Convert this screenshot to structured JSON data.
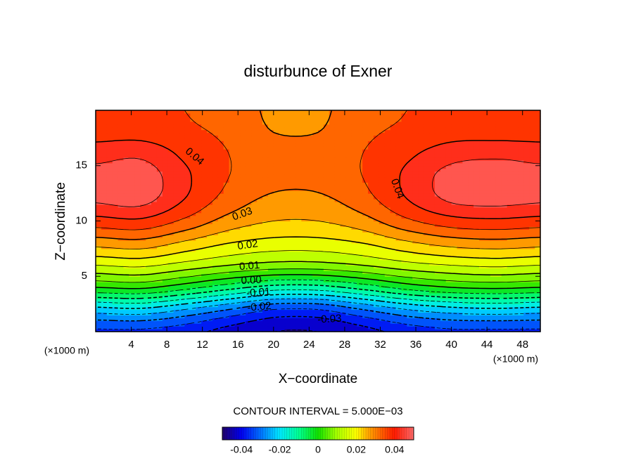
{
  "chart_data": {
    "type": "contour",
    "title": "disturbunce of Exner",
    "xlabel": "X−coordinate",
    "ylabel": "Z−coordinate",
    "x_unit_label": "(×1000 m)",
    "x": [
      0,
      5,
      10,
      15,
      20,
      25,
      30,
      35,
      40,
      45,
      50
    ],
    "y": [
      0,
      2,
      4,
      6,
      8,
      10,
      12,
      14,
      16,
      18,
      20
    ],
    "values": [
      [
        -0.036,
        -0.036,
        -0.038,
        -0.042,
        -0.045,
        -0.045,
        -0.042,
        -0.038,
        -0.036,
        -0.036,
        -0.036
      ],
      [
        -0.022,
        -0.021,
        -0.025,
        -0.03,
        -0.035,
        -0.035,
        -0.03,
        -0.025,
        -0.022,
        -0.021,
        -0.022
      ],
      [
        0.0,
        0.001,
        -0.003,
        -0.008,
        -0.012,
        -0.012,
        -0.008,
        -0.003,
        0.0,
        0.001,
        0.0
      ],
      [
        0.015,
        0.016,
        0.013,
        0.01,
        0.008,
        0.008,
        0.01,
        0.013,
        0.015,
        0.016,
        0.015
      ],
      [
        0.027,
        0.028,
        0.024,
        0.02,
        0.018,
        0.018,
        0.02,
        0.024,
        0.027,
        0.028,
        0.027
      ],
      [
        0.038,
        0.039,
        0.034,
        0.028,
        0.025,
        0.025,
        0.028,
        0.034,
        0.038,
        0.039,
        0.038
      ],
      [
        0.046,
        0.047,
        0.04,
        0.033,
        0.029,
        0.029,
        0.033,
        0.04,
        0.046,
        0.047,
        0.046
      ],
      [
        0.047,
        0.048,
        0.041,
        0.035,
        0.032,
        0.032,
        0.035,
        0.041,
        0.047,
        0.048,
        0.047
      ],
      [
        0.043,
        0.044,
        0.039,
        0.035,
        0.033,
        0.033,
        0.035,
        0.039,
        0.043,
        0.044,
        0.043
      ],
      [
        0.038,
        0.038,
        0.036,
        0.034,
        0.03,
        0.03,
        0.034,
        0.036,
        0.038,
        0.038,
        0.038
      ],
      [
        0.036,
        0.036,
        0.035,
        0.033,
        0.029,
        0.029,
        0.033,
        0.035,
        0.036,
        0.036,
        0.036
      ]
    ],
    "xlim": [
      0,
      50
    ],
    "ylim": [
      0,
      20
    ],
    "xticks": [
      4,
      8,
      12,
      16,
      20,
      24,
      28,
      32,
      36,
      40,
      44,
      48
    ],
    "yticks": [
      5,
      10,
      15
    ],
    "contour_interval": {
      "value": 0.005,
      "label": "CONTOUR INTERVAL = 5.000E−03"
    },
    "contour_labels": [
      {
        "value": 0.04,
        "label": "0.04",
        "x": 11.1,
        "y": 15.8
      },
      {
        "value": 0.04,
        "label": "0.04",
        "x": 33.9,
        "y": 12.9
      },
      {
        "value": 0.03,
        "label": "0.03",
        "x": 16.5,
        "y": 10.6
      },
      {
        "value": 0.02,
        "label": "0.02",
        "x": 17.1,
        "y": 7.8
      },
      {
        "value": 0.01,
        "label": "0.01",
        "x": 17.3,
        "y": 5.9
      },
      {
        "value": 0,
        "label": "0.00",
        "x": 17.5,
        "y": 4.6
      },
      {
        "value": -0.01,
        "label": "-0.01",
        "x": 18.3,
        "y": 3.5
      },
      {
        "value": -0.02,
        "label": "-0.02",
        "x": 18.4,
        "y": 2.2
      },
      {
        "value": -0.03,
        "label": "-0.03",
        "x": 26.3,
        "y": 1.1
      }
    ],
    "colormap": [
      [
        -0.05,
        "#20006a"
      ],
      [
        -0.04,
        "#0000f0"
      ],
      [
        -0.03,
        "#0070ff"
      ],
      [
        -0.02,
        "#00e8ff"
      ],
      [
        -0.01,
        "#00ff90"
      ],
      [
        0,
        "#10e000"
      ],
      [
        0.01,
        "#a8ff00"
      ],
      [
        0.02,
        "#ffff00"
      ],
      [
        0.025,
        "#ffb400"
      ],
      [
        0.03,
        "#ff8000"
      ],
      [
        0.04,
        "#ff1a00"
      ],
      [
        0.05,
        "#ff6a6a"
      ]
    ],
    "colorbar": {
      "lim": [
        -0.05,
        0.05
      ],
      "ticks": [
        -0.04,
        -0.02,
        0,
        0.02,
        0.04
      ]
    }
  }
}
